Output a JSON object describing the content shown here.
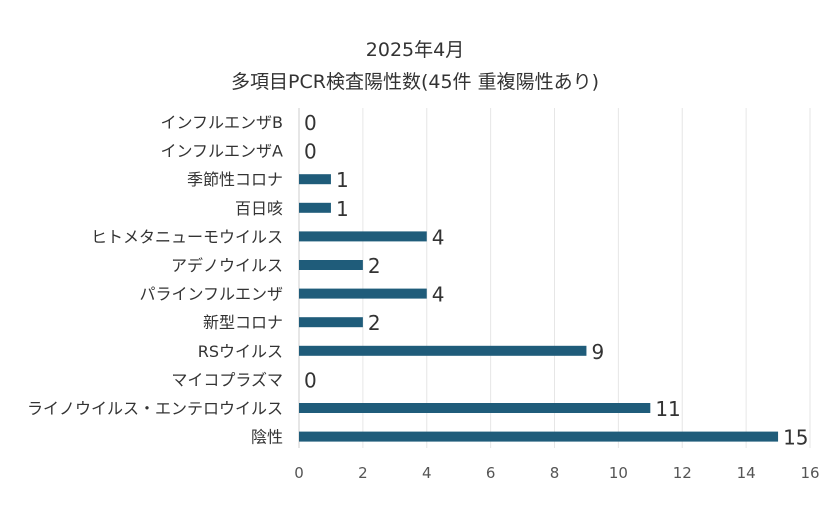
{
  "chart_data": {
    "type": "bar",
    "orientation": "horizontal",
    "title": "2025年4月",
    "subtitle": "多項目PCR検査陽性数(45件 重複陽性あり)",
    "categories": [
      "インフルエンザB",
      "インフルエンザA",
      "季節性コロナ",
      "百日咳",
      "ヒトメタニューモウイルス",
      "アデノウイルス",
      "パラインフルエンザ",
      "新型コロナ",
      "RSウイルス",
      "マイコプラズマ",
      "ライノウイルス・エンテロウイルス",
      "陰性"
    ],
    "values": [
      0,
      0,
      1,
      1,
      4,
      2,
      4,
      2,
      9,
      0,
      11,
      15
    ],
    "xlim": [
      0,
      16
    ],
    "xticks": [
      0,
      2,
      4,
      6,
      8,
      10,
      12,
      14,
      16
    ],
    "xlabel": "",
    "ylabel": "",
    "grid": "vertical",
    "legend": "none",
    "bar_color": "#1f5c7a"
  }
}
